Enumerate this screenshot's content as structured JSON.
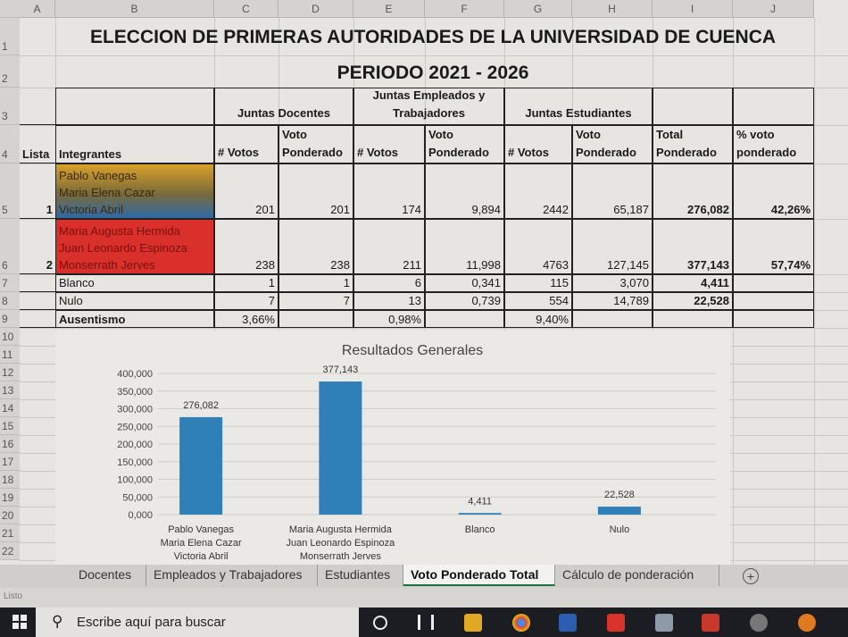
{
  "columns": [
    "A",
    "B",
    "C",
    "D",
    "E",
    "F",
    "G",
    "H",
    "I",
    "J"
  ],
  "rows": [
    "1",
    "2",
    "3",
    "4",
    "5",
    "6",
    "7",
    "8",
    "9",
    "10",
    "11",
    "12",
    "13",
    "14",
    "15",
    "16",
    "17",
    "18",
    "19",
    "20",
    "21",
    "22"
  ],
  "title_line1": "ELECCION DE PRIMERAS AUTORIDADES DE LA UNIVERSIDAD DE CUENCA",
  "title_line2": "PERIODO 2021 - 2026",
  "groups": {
    "docentes": "Juntas Docentes",
    "empleados": "Juntas Empleados y Trabajadores",
    "estudiantes": "Juntas Estudiantes"
  },
  "headers": {
    "lista": "Lista",
    "integrantes": "Integrantes",
    "votos": "# Votos",
    "ponderado": "Voto Ponderado",
    "total": "Total Ponderado",
    "pct": "% voto ponderado"
  },
  "table": [
    {
      "lista": "1",
      "names": [
        "Pablo Vanegas",
        "Maria Elena Cazar",
        "Victoria Abril"
      ],
      "c": "201",
      "d": "201",
      "e": "174",
      "f": "9,894",
      "g": "2442",
      "h": "65,187",
      "i": "276,082",
      "j": "42,26%"
    },
    {
      "lista": "2",
      "names": [
        "Maria Augusta Hermida",
        "Juan Leonardo Espinoza",
        "Monserrath Jerves"
      ],
      "c": "238",
      "d": "238",
      "e": "211",
      "f": "11,998",
      "g": "4763",
      "h": "127,145",
      "i": "377,143",
      "j": "57,74%"
    },
    {
      "lista": "",
      "names": [
        "Blanco"
      ],
      "c": "1",
      "d": "1",
      "e": "6",
      "f": "0,341",
      "g": "115",
      "h": "3,070",
      "i": "4,411",
      "j": ""
    },
    {
      "lista": "",
      "names": [
        "Nulo"
      ],
      "c": "7",
      "d": "7",
      "e": "13",
      "f": "0,739",
      "g": "554",
      "h": "14,789",
      "i": "22,528",
      "j": ""
    }
  ],
  "ausentismo": {
    "label": "Ausentismo",
    "docentes": "3,66%",
    "empleados": "0,98%",
    "estudiantes": "9,40%"
  },
  "colors": {
    "lista1_top": "#d9a12a",
    "lista1_bottom": "#2f6aa8",
    "lista2": "#d9302b",
    "bar": "#2f7fb8"
  },
  "chart_data": {
    "type": "bar",
    "title": "Resultados Generales",
    "categories": [
      [
        "Pablo Vanegas",
        "Maria Elena Cazar",
        "Victoria Abril"
      ],
      [
        "Maria Augusta Hermida",
        "Juan Leonardo Espinoza",
        "Monserrath Jerves"
      ],
      [
        "Blanco"
      ],
      [
        "Nulo"
      ]
    ],
    "values": [
      276082,
      377143,
      4411,
      22528
    ],
    "data_labels": [
      "276,082",
      "377,143",
      "4,411",
      "22,528"
    ],
    "yticks": [
      "0,000",
      "50,000",
      "100,000",
      "150,000",
      "200,000",
      "250,000",
      "300,000",
      "350,000",
      "400,000"
    ],
    "ylim": [
      0,
      400000
    ],
    "grid": true
  },
  "tabs": [
    {
      "label": "Docentes"
    },
    {
      "label": "Empleados y Trabajadores"
    },
    {
      "label": "Estudiantes"
    },
    {
      "label": "Voto Ponderado Total",
      "active": true
    },
    {
      "label": "Cálculo de ponderación"
    }
  ],
  "status": "Listo",
  "taskbar": {
    "search_placeholder": "Escribe aquí para buscar"
  }
}
